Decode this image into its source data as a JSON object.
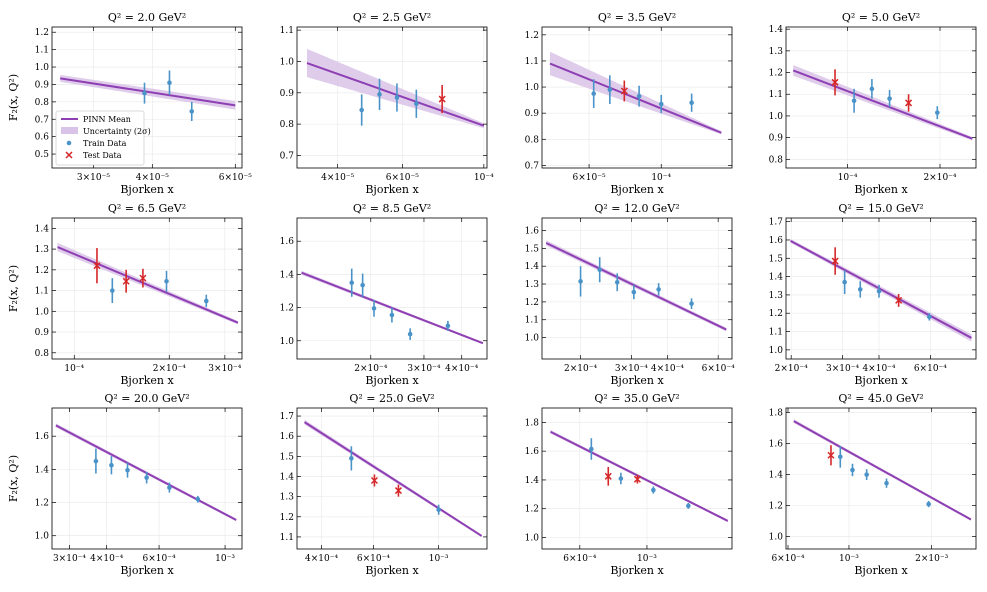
{
  "labels": {
    "xlabel": "Bjorken x",
    "ylabel": "F₂(x, Q²)"
  },
  "legend": {
    "location": "lower-left of first panel",
    "entries": [
      "PINN Mean",
      "Uncertainty (2σ)",
      "Train Data",
      "Test Data"
    ]
  },
  "colors": {
    "mean": "#8e3fb3",
    "band": "#d9c3e8",
    "train": "#4a93c9",
    "test": "#d62728",
    "grid": "#e8e8e8"
  },
  "chart_data": [
    {
      "type": "line",
      "title": "Q² = 2.0 GeV²",
      "q2": "2.0",
      "xlim": [
        2.45e-05,
        6.2e-05
      ],
      "ylim": [
        0.42,
        1.23
      ],
      "yticks": [
        "0.5",
        "0.6",
        "0.7",
        "0.8",
        "0.9",
        "1.0",
        "1.1",
        "1.2"
      ],
      "yvals": [
        0.5,
        0.6,
        0.7,
        0.8,
        0.9,
        1.0,
        1.1,
        1.2
      ],
      "xticks": [
        {
          "v": 3e-05,
          "t": "3×10⁻⁵"
        },
        {
          "v": 4e-05,
          "t": "4×10⁻⁵"
        },
        {
          "v": 6e-05,
          "t": "6×10⁻⁵"
        }
      ],
      "mean": [
        [
          2.55e-05,
          0.935
        ],
        [
          6e-05,
          0.78
        ]
      ],
      "band": [
        0.02,
        0.025
      ],
      "train": [
        {
          "x": 3.85e-05,
          "y": 0.85,
          "e": 0.06
        },
        {
          "x": 4.35e-05,
          "y": 0.91,
          "e": 0.07
        },
        {
          "x": 4.85e-05,
          "y": 0.745,
          "e": 0.055
        }
      ],
      "test": [],
      "ylabel": true,
      "legend": true
    },
    {
      "type": "line",
      "title": "Q² = 2.5 GeV²",
      "q2": "2.5",
      "xlim": [
        3.1e-05,
        0.000102
      ],
      "ylim": [
        0.66,
        1.11
      ],
      "yticks": [
        "0.7",
        "0.8",
        "0.9",
        "1.0",
        "1.1"
      ],
      "yvals": [
        0.7,
        0.8,
        0.9,
        1.0,
        1.1
      ],
      "xticks": [
        {
          "v": 4e-05,
          "t": "4×10⁻⁵"
        },
        {
          "v": 6e-05,
          "t": "6×10⁻⁵"
        },
        {
          "v": 0.0001,
          "t": "10⁻⁴"
        }
      ],
      "mean": [
        [
          3.3e-05,
          0.995
        ],
        [
          0.0001,
          0.795
        ]
      ],
      "band": [
        0.045,
        0.008
      ],
      "train": [
        {
          "x": 4.65e-05,
          "y": 0.845,
          "e": 0.05
        },
        {
          "x": 5.2e-05,
          "y": 0.895,
          "e": 0.05
        },
        {
          "x": 5.8e-05,
          "y": 0.885,
          "e": 0.045
        },
        {
          "x": 6.55e-05,
          "y": 0.865,
          "e": 0.045
        }
      ],
      "test": [
        {
          "x": 7.7e-05,
          "y": 0.88,
          "e": 0.045
        }
      ],
      "ylabel": false,
      "legend": false
    },
    {
      "type": "line",
      "title": "Q² = 3.5 GeV²",
      "q2": "3.5",
      "xlim": [
        4.3e-05,
        0.000165
      ],
      "ylim": [
        0.69,
        1.23
      ],
      "yticks": [
        "0.7",
        "0.8",
        "0.9",
        "1.0",
        "1.1",
        "1.2"
      ],
      "yvals": [
        0.7,
        0.8,
        0.9,
        1.0,
        1.1,
        1.2
      ],
      "xticks": [
        {
          "v": 6e-05,
          "t": "6×10⁻⁵"
        },
        {
          "v": 0.0001,
          "t": "10⁻⁴"
        }
      ],
      "mean": [
        [
          4.55e-05,
          1.09
        ],
        [
          0.000153,
          0.825
        ]
      ],
      "band": [
        0.045,
        0.006
      ],
      "train": [
        {
          "x": 6.2e-05,
          "y": 0.975,
          "e": 0.055
        },
        {
          "x": 6.95e-05,
          "y": 0.99,
          "e": 0.055
        },
        {
          "x": 8.55e-05,
          "y": 0.965,
          "e": 0.04
        },
        {
          "x": 0.0001,
          "y": 0.935,
          "e": 0.035
        },
        {
          "x": 0.000124,
          "y": 0.94,
          "e": 0.035
        }
      ],
      "test": [
        {
          "x": 7.7e-05,
          "y": 0.985,
          "e": 0.04
        }
      ],
      "ylabel": false,
      "legend": false
    },
    {
      "type": "line",
      "title": "Q² = 5.0 GeV²",
      "q2": "5.0",
      "xlim": [
        6.3e-05,
        0.000262
      ],
      "ylim": [
        0.76,
        1.41
      ],
      "yticks": [
        "0.8",
        "0.9",
        "1.0",
        "1.1",
        "1.2",
        "1.3",
        "1.4"
      ],
      "yvals": [
        0.8,
        0.9,
        1.0,
        1.1,
        1.2,
        1.3,
        1.4
      ],
      "xticks": [
        {
          "v": 0.0001,
          "t": "10⁻⁴"
        },
        {
          "v": 0.0002,
          "t": "2×10⁻⁴"
        }
      ],
      "mean": [
        [
          6.65e-05,
          1.21
        ],
        [
          0.000255,
          0.895
        ]
      ],
      "band": [
        0.025,
        0.008
      ],
      "train": [
        {
          "x": 0.000105,
          "y": 1.07,
          "e": 0.055
        },
        {
          "x": 0.00012,
          "y": 1.125,
          "e": 0.045
        },
        {
          "x": 0.000137,
          "y": 1.08,
          "e": 0.04
        },
        {
          "x": 0.000196,
          "y": 1.015,
          "e": 0.03
        }
      ],
      "test": [
        {
          "x": 9.1e-05,
          "y": 1.155,
          "e": 0.06
        },
        {
          "x": 0.000158,
          "y": 1.06,
          "e": 0.04
        }
      ],
      "ylabel": false,
      "legend": false
    },
    {
      "type": "line",
      "title": "Q² = 6.5 GeV²",
      "q2": "6.5",
      "xlim": [
        8.5e-05,
        0.00034
      ],
      "ylim": [
        0.77,
        1.45
      ],
      "yticks": [
        "0.8",
        "0.9",
        "1.0",
        "1.1",
        "1.2",
        "1.3",
        "1.4"
      ],
      "yvals": [
        0.8,
        0.9,
        1.0,
        1.1,
        1.2,
        1.3,
        1.4
      ],
      "xticks": [
        {
          "v": 0.0001,
          "t": "10⁻⁴"
        },
        {
          "v": 0.0002,
          "t": "2×10⁻⁴"
        },
        {
          "v": 0.0003,
          "t": "3×10⁻⁴"
        }
      ],
      "mean": [
        [
          8.85e-05,
          1.31
        ],
        [
          0.00033,
          0.945
        ]
      ],
      "band": [
        0.02,
        0.008
      ],
      "train": [
        {
          "x": 0.000132,
          "y": 1.1,
          "e": 0.06
        },
        {
          "x": 0.000196,
          "y": 1.145,
          "e": 0.05
        },
        {
          "x": 0.000262,
          "y": 1.05,
          "e": 0.03
        }
      ],
      "test": [
        {
          "x": 0.000118,
          "y": 1.22,
          "e": 0.085
        },
        {
          "x": 0.000146,
          "y": 1.145,
          "e": 0.055
        },
        {
          "x": 0.000165,
          "y": 1.16,
          "e": 0.045
        }
      ],
      "ylabel": true,
      "legend": false
    },
    {
      "type": "line",
      "title": "Q² = 8.5 GeV²",
      "q2": "8.5",
      "xlim": [
        0.000114,
        0.000485
      ],
      "ylim": [
        0.89,
        1.74
      ],
      "yticks": [
        "1.0",
        "1.2",
        "1.4",
        "1.6"
      ],
      "yvals": [
        1.0,
        1.2,
        1.4,
        1.6
      ],
      "xticks": [
        {
          "v": 0.0002,
          "t": "2×10⁻⁴"
        },
        {
          "v": 0.0003,
          "t": "3×10⁻⁴"
        },
        {
          "v": 0.0004,
          "t": "4×10⁻⁴"
        }
      ],
      "mean": [
        [
          0.000118,
          1.41
        ],
        [
          0.00047,
          0.985
        ]
      ],
      "band": [
        0.012,
        0.006
      ],
      "train": [
        {
          "x": 0.000173,
          "y": 1.35,
          "e": 0.085
        },
        {
          "x": 0.000188,
          "y": 1.335,
          "e": 0.07
        },
        {
          "x": 0.000205,
          "y": 1.195,
          "e": 0.05
        },
        {
          "x": 0.000235,
          "y": 1.155,
          "e": 0.045
        },
        {
          "x": 0.00027,
          "y": 1.04,
          "e": 0.035
        },
        {
          "x": 0.00036,
          "y": 1.09,
          "e": 0.03
        }
      ],
      "test": [],
      "ylabel": false,
      "legend": false
    },
    {
      "type": "line",
      "title": "Q² = 12.0 GeV²",
      "q2": "12.0",
      "xlim": [
        0.000147,
        0.00067
      ],
      "ylim": [
        0.88,
        1.67
      ],
      "yticks": [
        "1.0",
        "1.1",
        "1.2",
        "1.3",
        "1.4",
        "1.5",
        "1.6"
      ],
      "yvals": [
        1.0,
        1.1,
        1.2,
        1.3,
        1.4,
        1.5,
        1.6
      ],
      "xticks": [
        {
          "v": 0.0002,
          "t": "2×10⁻⁴"
        },
        {
          "v": 0.0003,
          "t": "3×10⁻⁴"
        },
        {
          "v": 0.0004,
          "t": "4×10⁻⁴"
        },
        {
          "v": 0.0006,
          "t": "6×10⁻⁴"
        }
      ],
      "mean": [
        [
          0.000152,
          1.53
        ],
        [
          0.00064,
          1.045
        ]
      ],
      "band": [
        0.015,
        0.01
      ],
      "train": [
        {
          "x": 0.0002,
          "y": 1.315,
          "e": 0.085
        },
        {
          "x": 0.000233,
          "y": 1.38,
          "e": 0.07
        },
        {
          "x": 0.000268,
          "y": 1.31,
          "e": 0.05
        },
        {
          "x": 0.000306,
          "y": 1.255,
          "e": 0.04
        },
        {
          "x": 0.000373,
          "y": 1.27,
          "e": 0.035
        },
        {
          "x": 0.000485,
          "y": 1.19,
          "e": 0.03
        }
      ],
      "test": [],
      "ylabel": false,
      "legend": false
    },
    {
      "type": "line",
      "title": "Q² = 15.0 GeV²",
      "q2": "15.0",
      "xlim": [
        0.000192,
        0.00086
      ],
      "ylim": [
        0.95,
        1.72
      ],
      "yticks": [
        "1.0",
        "1.1",
        "1.2",
        "1.3",
        "1.4",
        "1.5",
        "1.6",
        "1.7"
      ],
      "yvals": [
        1.0,
        1.1,
        1.2,
        1.3,
        1.4,
        1.5,
        1.6,
        1.7
      ],
      "xticks": [
        {
          "v": 0.0002,
          "t": "2×10⁻⁴"
        },
        {
          "v": 0.0003,
          "t": "3×10⁻⁴"
        },
        {
          "v": 0.0004,
          "t": "4×10⁻⁴"
        },
        {
          "v": 0.0006,
          "t": "6×10⁻⁴"
        }
      ],
      "mean": [
        [
          0.000199,
          1.595
        ],
        [
          0.00083,
          1.065
        ]
      ],
      "band": [
        0.01,
        0.02
      ],
      "train": [
        {
          "x": 0.000305,
          "y": 1.37,
          "e": 0.065
        },
        {
          "x": 0.000345,
          "y": 1.33,
          "e": 0.045
        },
        {
          "x": 0.0004,
          "y": 1.32,
          "e": 0.035
        },
        {
          "x": 0.000595,
          "y": 1.18,
          "e": 0.02
        }
      ],
      "test": [
        {
          "x": 0.000283,
          "y": 1.485,
          "e": 0.075
        },
        {
          "x": 0.000467,
          "y": 1.27,
          "e": 0.035
        }
      ],
      "ylabel": false,
      "legend": false
    },
    {
      "type": "line",
      "title": "Q² = 20.0 GeV²",
      "q2": "20.0",
      "xlim": [
        0.000262,
        0.00114
      ],
      "ylim": [
        0.92,
        1.77
      ],
      "yticks": [
        "1.0",
        "1.2",
        "1.4",
        "1.6"
      ],
      "yvals": [
        1.0,
        1.2,
        1.4,
        1.6
      ],
      "xticks": [
        {
          "v": 0.0003,
          "t": "3×10⁻⁴"
        },
        {
          "v": 0.0004,
          "t": "4×10⁻⁴"
        },
        {
          "v": 0.0006,
          "t": "6×10⁻⁴"
        },
        {
          "v": 0.001,
          "t": "10⁻³"
        }
      ],
      "mean": [
        [
          0.00027,
          1.665
        ],
        [
          0.00109,
          1.095
        ]
      ],
      "band": [
        0.012,
        0.008
      ],
      "train": [
        {
          "x": 0.000368,
          "y": 1.45,
          "e": 0.075
        },
        {
          "x": 0.000415,
          "y": 1.425,
          "e": 0.055
        },
        {
          "x": 0.00047,
          "y": 1.395,
          "e": 0.045
        },
        {
          "x": 0.000545,
          "y": 1.35,
          "e": 0.035
        },
        {
          "x": 0.00065,
          "y": 1.29,
          "e": 0.03
        },
        {
          "x": 0.00081,
          "y": 1.22,
          "e": 0.02
        }
      ],
      "test": [],
      "ylabel": true,
      "legend": false
    },
    {
      "type": "line",
      "title": "Q² = 25.0 GeV²",
      "q2": "25.0",
      "xlim": [
        0.00033,
        0.00146
      ],
      "ylim": [
        1.04,
        1.74
      ],
      "yticks": [
        "1.1",
        "1.2",
        "1.3",
        "1.4",
        "1.5",
        "1.6",
        "1.7"
      ],
      "yvals": [
        1.1,
        1.2,
        1.3,
        1.4,
        1.5,
        1.6,
        1.7
      ],
      "xticks": [
        {
          "v": 0.0004,
          "t": "4×10⁻⁴"
        },
        {
          "v": 0.0006,
          "t": "6×10⁻⁴"
        },
        {
          "v": 0.001,
          "t": "10⁻³"
        }
      ],
      "mean": [
        [
          0.00035,
          1.67
        ],
        [
          0.0014,
          1.105
        ]
      ],
      "band": [
        0.012,
        0.006
      ],
      "train": [
        {
          "x": 0.000505,
          "y": 1.49,
          "e": 0.06
        },
        {
          "x": 0.001,
          "y": 1.235,
          "e": 0.025
        }
      ],
      "test": [
        {
          "x": 0.000605,
          "y": 1.38,
          "e": 0.03
        },
        {
          "x": 0.00073,
          "y": 1.33,
          "e": 0.03
        }
      ],
      "ylabel": false,
      "legend": false
    },
    {
      "type": "line",
      "title": "Q² = 35.0 GeV²",
      "q2": "35.0",
      "xlim": [
        0.00045,
        0.00191
      ],
      "ylim": [
        0.92,
        1.9
      ],
      "yticks": [
        "1.0",
        "1.2",
        "1.4",
        "1.6",
        "1.8"
      ],
      "yvals": [
        1.0,
        1.2,
        1.4,
        1.6,
        1.8
      ],
      "xticks": [
        {
          "v": 0.0006,
          "t": "6×10⁻⁴"
        },
        {
          "v": 0.001,
          "t": "10⁻³"
        }
      ],
      "mean": [
        [
          0.00048,
          1.735
        ],
        [
          0.00185,
          1.115
        ]
      ],
      "band": [
        0.012,
        0.008
      ],
      "train": [
        {
          "x": 0.000655,
          "y": 1.615,
          "e": 0.075
        },
        {
          "x": 0.00082,
          "y": 1.41,
          "e": 0.04
        },
        {
          "x": 0.00105,
          "y": 1.33,
          "e": 0.025
        },
        {
          "x": 0.00137,
          "y": 1.22,
          "e": 0.02
        }
      ],
      "test": [
        {
          "x": 0.000745,
          "y": 1.425,
          "e": 0.065
        },
        {
          "x": 0.00093,
          "y": 1.405,
          "e": 0.03
        }
      ],
      "ylabel": false,
      "legend": false
    },
    {
      "type": "line",
      "title": "Q² = 45.0 GeV²",
      "q2": "45.0",
      "xlim": [
        0.00059,
        0.0029
      ],
      "ylim": [
        0.92,
        1.83
      ],
      "yticks": [
        "1.0",
        "1.2",
        "1.4",
        "1.6",
        "1.8"
      ],
      "yvals": [
        1.0,
        1.2,
        1.4,
        1.6,
        1.8
      ],
      "xticks": [
        {
          "v": 0.0006,
          "t": "6×10⁻⁴"
        },
        {
          "v": 0.001,
          "t": "10⁻³"
        },
        {
          "v": 0.002,
          "t": "2×10⁻³"
        }
      ],
      "mean": [
        [
          0.00063,
          1.745
        ],
        [
          0.00278,
          1.11
        ]
      ],
      "band": [
        0.012,
        0.008
      ],
      "train": [
        {
          "x": 0.00093,
          "y": 1.515,
          "e": 0.07
        },
        {
          "x": 0.00103,
          "y": 1.43,
          "e": 0.04
        },
        {
          "x": 0.00116,
          "y": 1.4,
          "e": 0.035
        },
        {
          "x": 0.00137,
          "y": 1.345,
          "e": 0.03
        },
        {
          "x": 0.00195,
          "y": 1.21,
          "e": 0.02
        }
      ],
      "test": [
        {
          "x": 0.00086,
          "y": 1.525,
          "e": 0.065
        }
      ],
      "ylabel": false,
      "legend": false
    }
  ]
}
